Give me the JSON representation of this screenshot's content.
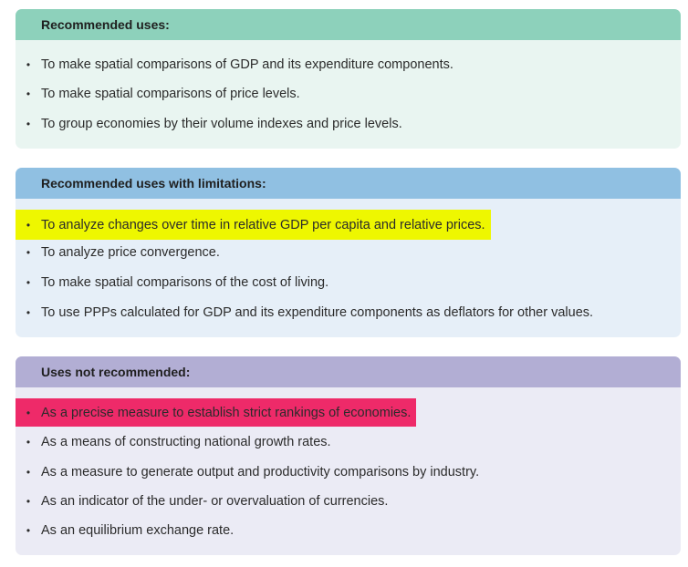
{
  "sections": [
    {
      "title": "Recommended uses:",
      "items": [
        "To make spatial comparisons of GDP and its expenditure components.",
        "To make spatial comparisons of price levels.",
        "To group economies by their volume indexes and price levels."
      ]
    },
    {
      "title": "Recommended uses with limitations:",
      "items": [
        "To analyze changes over time in relative GDP per capita and relative prices.",
        "To analyze price convergence.",
        "To make spatial comparisons of the cost of living.",
        "To use PPPs calculated for GDP and its expenditure components as deflators for other values."
      ]
    },
    {
      "title": "Uses not recommended:",
      "items": [
        "As a precise measure to establish strict rankings of economies.",
        "As a means of constructing national growth rates.",
        "As a measure to generate output and productivity comparisons by industry.",
        "As an indicator of the under- or overvaluation of currencies.",
        "As an equilibrium exchange rate."
      ]
    }
  ],
  "bullet_glyph": "•",
  "colors": {
    "recommended_header": "#8dd1bb",
    "limitations_header": "#90c0e2",
    "not_recommended_header": "#b2aed4",
    "highlight_yellow": "#eef700",
    "highlight_pink": "#ee2a69"
  }
}
